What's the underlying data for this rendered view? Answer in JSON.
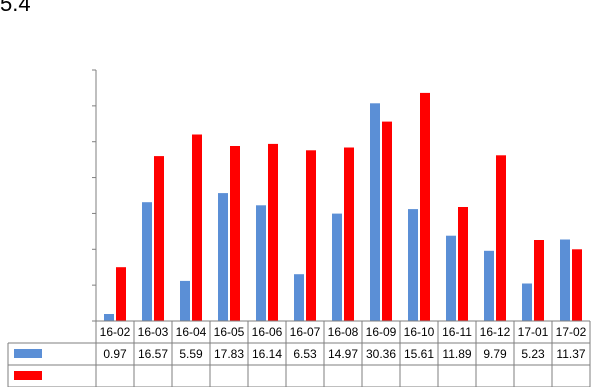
{
  "corner_label": "5.4",
  "chart_data": {
    "type": "bar",
    "title": "",
    "xlabel": "",
    "ylabel": "",
    "categories": [
      "16-02",
      "16-03",
      "16-04",
      "16-05",
      "16-06",
      "16-07",
      "16-08",
      "16-09",
      "16-10",
      "16-11",
      "16-12",
      "17-01",
      "17-02"
    ],
    "series": [
      {
        "color": "#5b8fd6",
        "values": [
          0.97,
          16.57,
          5.59,
          17.83,
          16.14,
          6.53,
          14.97,
          30.36,
          15.61,
          11.89,
          9.79,
          5.23,
          11.37
        ]
      },
      {
        "color": "#ff0000",
        "values": [
          7.5,
          23.0,
          26.0,
          24.4,
          24.7,
          23.8,
          24.2,
          27.8,
          31.8,
          15.9,
          23.1,
          11.3,
          10.0
        ]
      }
    ],
    "ylim": [
      0,
      35
    ],
    "grid": false,
    "legend": "data-table",
    "table_rows": [
      {
        "color": "#5b8fd6",
        "cells": [
          "0.97",
          "16.57",
          "5.59",
          "17.83",
          "16.14",
          "6.53",
          "14.97",
          "30.36",
          "15.61",
          "11.89",
          "9.79",
          "5.23",
          "11.37"
        ]
      },
      {
        "color": "#ff0000",
        "cells": [
          "",
          "",
          "",
          "",
          "",
          "",
          "",
          "",
          "",
          "",
          "",
          "",
          ""
        ]
      }
    ]
  }
}
